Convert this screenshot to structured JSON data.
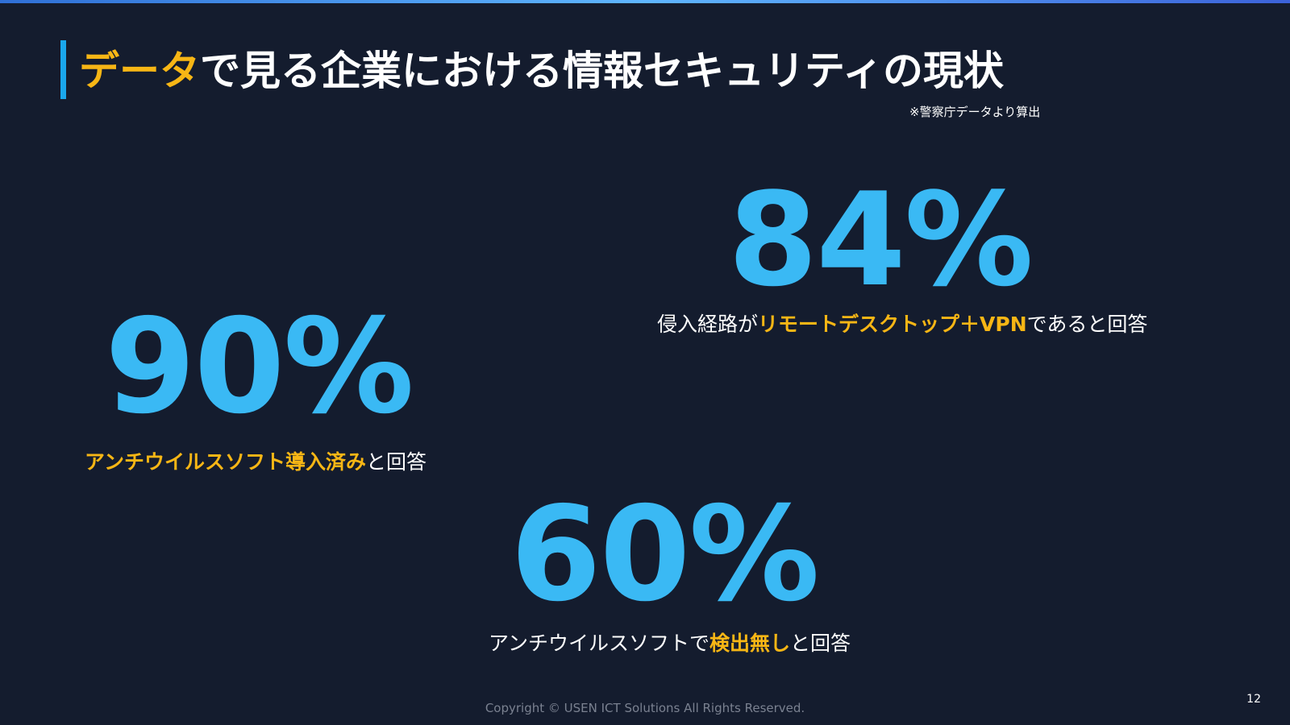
{
  "title": {
    "highlight": "データ",
    "rest": "で見る企業における情報セキュリティの現状"
  },
  "source_note": "※警察庁データより算出",
  "stats": [
    {
      "value": "84%",
      "caption_before": "侵入経路が",
      "caption_highlight": "リモートデスクトップ＋VPN",
      "caption_after": "であると回答"
    },
    {
      "value": "90%",
      "caption_before": "",
      "caption_highlight": "アンチウイルスソフト導入済み",
      "caption_after": "と回答"
    },
    {
      "value": "60%",
      "caption_before": "アンチウイルスソフトで",
      "caption_highlight": "検出無し",
      "caption_after": "と回答"
    }
  ],
  "copyright": "Copyright © USEN ICT Solutions All Rights Reserved.",
  "page_number": "12",
  "colors": {
    "background": "#141c2e",
    "accent_blue": "#3ab9f4",
    "highlight_yellow": "#f7b615",
    "title_bar": "#1aa7ec"
  }
}
